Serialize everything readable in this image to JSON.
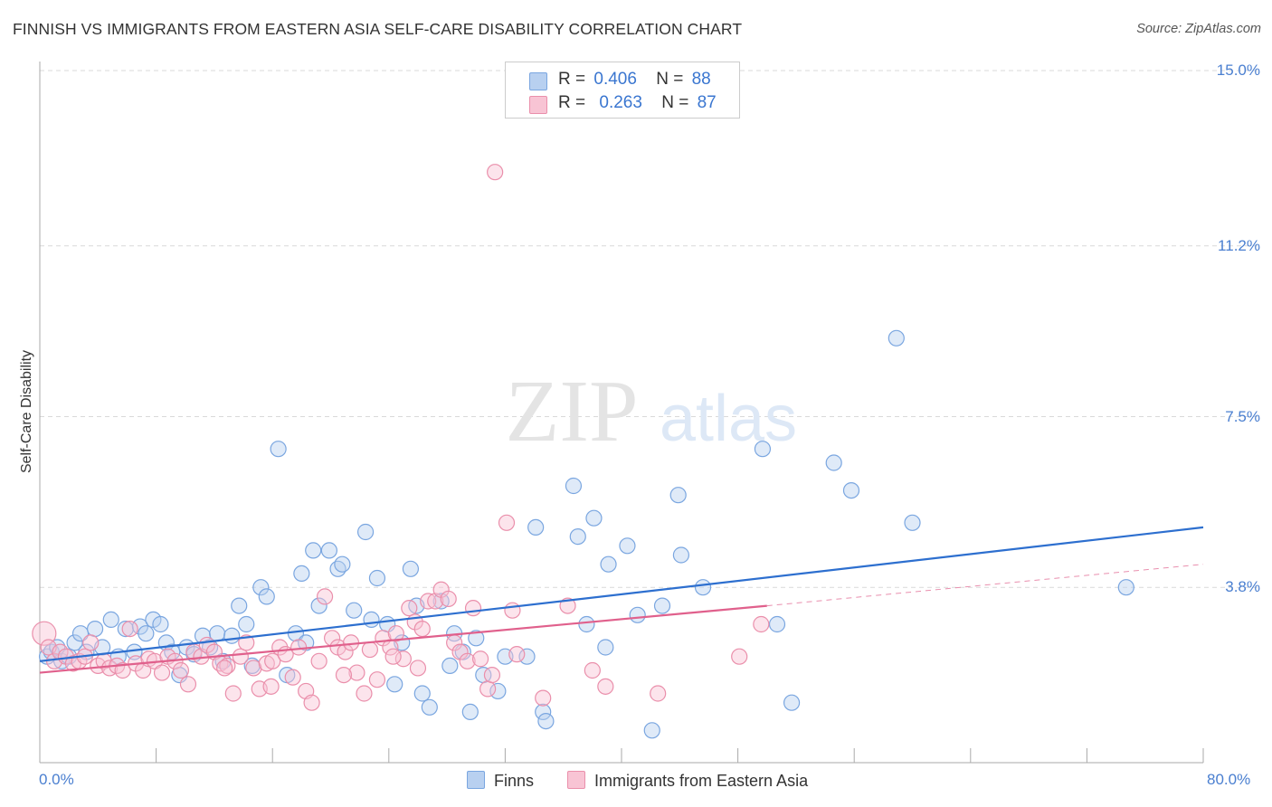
{
  "title": "FINNISH VS IMMIGRANTS FROM EASTERN ASIA SELF-CARE DISABILITY CORRELATION CHART",
  "source": "Source: ZipAtlas.com",
  "watermark": {
    "zip": "ZIP",
    "atlas": "atlas"
  },
  "legend": {
    "r_label": "R =",
    "n_label": "N =",
    "finns": {
      "r": "0.406",
      "n": "88"
    },
    "immigrants": {
      "r": "0.263",
      "n": "87"
    }
  },
  "colors": {
    "finns_fill": "#b8d0f0",
    "finns_stroke": "#7aa6e0",
    "finns_line": "#2d6fcf",
    "imm_fill": "#f8c4d4",
    "imm_stroke": "#ea8fab",
    "imm_line": "#e0608c",
    "tick_text": "#4a7fd0",
    "grid": "#d9d9d9"
  },
  "chart_data": {
    "type": "scatter",
    "xlabel": "",
    "ylabel": "Self-Care Disability",
    "xlim": [
      0,
      80
    ],
    "ylim": [
      0.0,
      15.0
    ],
    "x_tick_labels": [
      "0.0%",
      "80.0%"
    ],
    "y_ticks": [
      3.8,
      7.5,
      11.2,
      15.0
    ],
    "y_tick_labels": [
      "3.8%",
      "7.5%",
      "11.2%",
      "15.0%"
    ],
    "grid": true,
    "legend_position": "top-center",
    "series": [
      {
        "name": "Finns",
        "trend": {
          "x": [
            0,
            80
          ],
          "y": [
            2.2,
            5.1
          ]
        },
        "points": [
          [
            0.5,
            2.3
          ],
          [
            0.8,
            2.4
          ],
          [
            1.2,
            2.5
          ],
          [
            1.5,
            2.2
          ],
          [
            2.0,
            2.3
          ],
          [
            2.4,
            2.6
          ],
          [
            2.8,
            2.8
          ],
          [
            3.2,
            2.4
          ],
          [
            3.8,
            2.9
          ],
          [
            4.3,
            2.5
          ],
          [
            4.9,
            3.1
          ],
          [
            5.4,
            2.3
          ],
          [
            5.9,
            2.9
          ],
          [
            6.5,
            2.4
          ],
          [
            6.9,
            2.95
          ],
          [
            7.3,
            2.8
          ],
          [
            7.8,
            3.1
          ],
          [
            8.3,
            3.0
          ],
          [
            8.7,
            2.6
          ],
          [
            9.1,
            2.4
          ],
          [
            9.6,
            1.9
          ],
          [
            10.1,
            2.5
          ],
          [
            10.6,
            2.35
          ],
          [
            11.2,
            2.75
          ],
          [
            11.7,
            2.5
          ],
          [
            12.2,
            2.8
          ],
          [
            12.6,
            2.2
          ],
          [
            13.2,
            2.75
          ],
          [
            13.7,
            3.4
          ],
          [
            14.2,
            3.0
          ],
          [
            14.6,
            2.1
          ],
          [
            15.2,
            3.8
          ],
          [
            15.6,
            3.6
          ],
          [
            16.4,
            6.8
          ],
          [
            17.0,
            1.9
          ],
          [
            17.6,
            2.8
          ],
          [
            18.0,
            4.1
          ],
          [
            18.3,
            2.6
          ],
          [
            18.8,
            4.6
          ],
          [
            19.2,
            3.4
          ],
          [
            19.9,
            4.6
          ],
          [
            20.5,
            4.2
          ],
          [
            20.8,
            4.3
          ],
          [
            21.6,
            3.3
          ],
          [
            22.4,
            5.0
          ],
          [
            22.8,
            3.1
          ],
          [
            23.2,
            4.0
          ],
          [
            23.9,
            3.0
          ],
          [
            24.4,
            1.7
          ],
          [
            24.9,
            2.6
          ],
          [
            25.5,
            4.2
          ],
          [
            25.9,
            3.4
          ],
          [
            26.3,
            1.5
          ],
          [
            26.8,
            1.2
          ],
          [
            27.6,
            3.5
          ],
          [
            28.2,
            2.1
          ],
          [
            28.5,
            2.8
          ],
          [
            29.1,
            2.4
          ],
          [
            29.6,
            1.1
          ],
          [
            30.0,
            2.7
          ],
          [
            30.5,
            1.9
          ],
          [
            31.5,
            1.55
          ],
          [
            32.0,
            2.3
          ],
          [
            34.1,
            5.1
          ],
          [
            34.6,
            1.1
          ],
          [
            34.8,
            0.9
          ],
          [
            37.0,
            4.9
          ],
          [
            37.6,
            3.0
          ],
          [
            38.1,
            5.3
          ],
          [
            38.9,
            2.5
          ],
          [
            39.1,
            4.3
          ],
          [
            40.4,
            4.7
          ],
          [
            41.1,
            3.2
          ],
          [
            42.1,
            0.7
          ],
          [
            42.8,
            3.4
          ],
          [
            43.9,
            5.8
          ],
          [
            44.1,
            4.5
          ],
          [
            45.6,
            3.8
          ],
          [
            49.7,
            6.8
          ],
          [
            50.7,
            3.0
          ],
          [
            51.7,
            1.3
          ],
          [
            54.6,
            6.5
          ],
          [
            55.8,
            5.9
          ],
          [
            58.9,
            9.2
          ],
          [
            60.0,
            5.2
          ],
          [
            74.7,
            3.8
          ],
          [
            36.7,
            6.0
          ],
          [
            33.5,
            2.3
          ]
        ]
      },
      {
        "name": "Immigrants from Eastern Asia",
        "trend": {
          "x": [
            0,
            50
          ],
          "y": [
            1.95,
            3.4
          ]
        },
        "trend_dashed": {
          "x": [
            50,
            80
          ],
          "y": [
            3.4,
            4.3
          ]
        },
        "points": [
          [
            0.3,
            2.8
          ],
          [
            0.6,
            2.5
          ],
          [
            1.0,
            2.2
          ],
          [
            1.4,
            2.4
          ],
          [
            1.8,
            2.3
          ],
          [
            2.3,
            2.15
          ],
          [
            2.7,
            2.2
          ],
          [
            3.1,
            2.3
          ],
          [
            3.5,
            2.6
          ],
          [
            4.0,
            2.1
          ],
          [
            4.4,
            2.2
          ],
          [
            4.8,
            2.05
          ],
          [
            5.3,
            2.1
          ],
          [
            5.7,
            2.0
          ],
          [
            6.2,
            2.9
          ],
          [
            6.6,
            2.15
          ],
          [
            7.1,
            2.0
          ],
          [
            7.5,
            2.25
          ],
          [
            7.9,
            2.2
          ],
          [
            8.4,
            1.95
          ],
          [
            8.8,
            2.3
          ],
          [
            9.3,
            2.2
          ],
          [
            9.7,
            2.0
          ],
          [
            10.2,
            1.7
          ],
          [
            10.6,
            2.4
          ],
          [
            11.1,
            2.3
          ],
          [
            11.5,
            2.55
          ],
          [
            12.0,
            2.4
          ],
          [
            12.4,
            2.15
          ],
          [
            12.9,
            2.1
          ],
          [
            13.3,
            1.5
          ],
          [
            13.8,
            2.3
          ],
          [
            14.2,
            2.6
          ],
          [
            14.7,
            2.05
          ],
          [
            15.1,
            1.6
          ],
          [
            15.6,
            2.15
          ],
          [
            16.0,
            2.2
          ],
          [
            16.5,
            2.5
          ],
          [
            16.9,
            2.35
          ],
          [
            17.4,
            1.85
          ],
          [
            17.8,
            2.5
          ],
          [
            18.3,
            1.55
          ],
          [
            18.7,
            1.3
          ],
          [
            19.2,
            2.2
          ],
          [
            19.6,
            3.6
          ],
          [
            20.1,
            2.7
          ],
          [
            20.5,
            2.5
          ],
          [
            21.0,
            2.4
          ],
          [
            21.4,
            2.6
          ],
          [
            21.8,
            1.95
          ],
          [
            22.3,
            1.5
          ],
          [
            22.7,
            2.45
          ],
          [
            23.2,
            1.8
          ],
          [
            23.6,
            2.7
          ],
          [
            24.1,
            2.5
          ],
          [
            24.5,
            2.8
          ],
          [
            25.0,
            2.25
          ],
          [
            25.4,
            3.35
          ],
          [
            25.8,
            3.05
          ],
          [
            26.3,
            2.9
          ],
          [
            26.7,
            3.5
          ],
          [
            27.2,
            3.5
          ],
          [
            27.6,
            3.75
          ],
          [
            28.1,
            3.55
          ],
          [
            28.5,
            2.6
          ],
          [
            28.9,
            2.4
          ],
          [
            29.4,
            2.2
          ],
          [
            29.8,
            3.35
          ],
          [
            30.8,
            1.6
          ],
          [
            32.1,
            5.2
          ],
          [
            32.5,
            3.3
          ],
          [
            32.8,
            2.35
          ],
          [
            34.6,
            1.4
          ],
          [
            36.3,
            3.4
          ],
          [
            38.0,
            2.0
          ],
          [
            38.9,
            1.65
          ],
          [
            42.5,
            1.5
          ],
          [
            48.1,
            2.3
          ],
          [
            49.6,
            3.0
          ],
          [
            30.3,
            2.25
          ],
          [
            31.1,
            1.9
          ],
          [
            26.0,
            2.05
          ],
          [
            24.3,
            2.3
          ],
          [
            20.9,
            1.9
          ],
          [
            15.9,
            1.65
          ],
          [
            12.7,
            2.05
          ],
          [
            31.3,
            12.8
          ]
        ]
      }
    ]
  },
  "x_axis_left_label": "0.0%",
  "x_axis_right_label": "80.0%",
  "bottom_legend": {
    "finns": "Finns",
    "immigrants": "Immigrants from Eastern Asia"
  }
}
